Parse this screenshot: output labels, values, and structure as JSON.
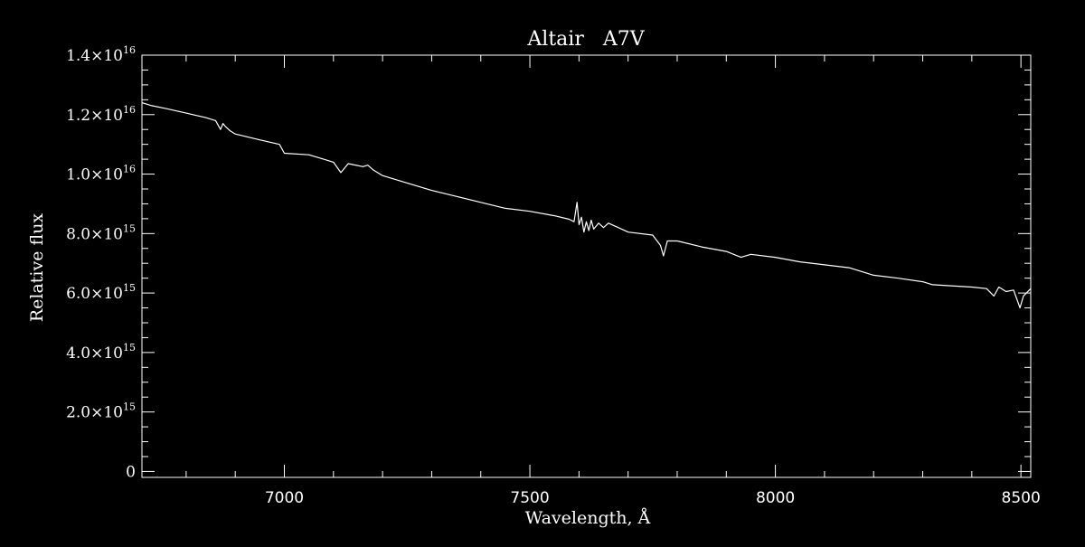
{
  "chart_data": {
    "type": "line",
    "title": "Altair   A7V",
    "xlabel": "Wavelength, Å",
    "ylabel": "Relative flux",
    "xlim": [
      6710,
      8520
    ],
    "ylim": [
      -200000000000000.0,
      1.4e+16
    ],
    "x_ticks": [
      7000,
      7500,
      8000,
      8500
    ],
    "x_tick_labels": [
      "7000",
      "7500",
      "8000",
      "8500"
    ],
    "y_ticks": [
      {
        "value": 1.4e+16,
        "mantissa": "1.4",
        "times": "×",
        "base": "10",
        "exp": "16"
      },
      {
        "value": 1.2e+16,
        "mantissa": "1.2",
        "times": "×",
        "base": "10",
        "exp": "16"
      },
      {
        "value": 1e+16,
        "mantissa": "1.0",
        "times": "×",
        "base": "10",
        "exp": "16"
      },
      {
        "value": 8000000000000000.0,
        "mantissa": "8.0",
        "times": "×",
        "base": "10",
        "exp": "15"
      },
      {
        "value": 6000000000000000.0,
        "mantissa": "6.0",
        "times": "×",
        "base": "10",
        "exp": "15"
      },
      {
        "value": 4000000000000000.0,
        "mantissa": "4.0",
        "times": "×",
        "base": "10",
        "exp": "15"
      },
      {
        "value": 2000000000000000.0,
        "mantissa": "2.0",
        "times": "×",
        "base": "10",
        "exp": "15"
      },
      {
        "value": 0,
        "mantissa": "0",
        "times": "",
        "base": "",
        "exp": ""
      }
    ],
    "x_minor_step": 100,
    "y_minor_step": 500000000000000.0,
    "grid": false,
    "colors": {
      "background": "#000000",
      "foreground": "#ffffff"
    },
    "series": [
      {
        "points": [
          [
            6710,
            1.24e+16
          ],
          [
            6730,
            1.23e+16
          ],
          [
            6760,
            1.22e+16
          ],
          [
            6800,
            1.205e+16
          ],
          [
            6840,
            1.19e+16
          ],
          [
            6860,
            1.18e+16
          ],
          [
            6870,
            1.15e+16
          ],
          [
            6875,
            1.17e+16
          ],
          [
            6880,
            1.16e+16
          ],
          [
            6890,
            1.145e+16
          ],
          [
            6900,
            1.135e+16
          ],
          [
            6950,
            1.115e+16
          ],
          [
            6990,
            1.1e+16
          ],
          [
            7000,
            1.07e+16
          ],
          [
            7050,
            1.065e+16
          ],
          [
            7080,
            1.05e+16
          ],
          [
            7100,
            1.04e+16
          ],
          [
            7115,
            1.005e+16
          ],
          [
            7130,
            1.035e+16
          ],
          [
            7160,
            1.025e+16
          ],
          [
            7170,
            1.03e+16
          ],
          [
            7180,
            1.015e+16
          ],
          [
            7200,
            9950000000000000.0
          ],
          [
            7250,
            9700000000000000.0
          ],
          [
            7300,
            9450000000000000.0
          ],
          [
            7350,
            9250000000000000.0
          ],
          [
            7400,
            9050000000000000.0
          ],
          [
            7450,
            8850000000000000.0
          ],
          [
            7500,
            8750000000000000.0
          ],
          [
            7550,
            8600000000000000.0
          ],
          [
            7580,
            8480000000000000.0
          ],
          [
            7590,
            8400000000000000.0
          ],
          [
            7596,
            9050000000000000.0
          ],
          [
            7600,
            8300000000000000.0
          ],
          [
            7605,
            8550000000000000.0
          ],
          [
            7610,
            8050000000000000.0
          ],
          [
            7615,
            8400000000000000.0
          ],
          [
            7620,
            8100000000000000.0
          ],
          [
            7625,
            8450000000000000.0
          ],
          [
            7630,
            8150000000000000.0
          ],
          [
            7640,
            8350000000000000.0
          ],
          [
            7650,
            8200000000000000.0
          ],
          [
            7660,
            8350000000000000.0
          ],
          [
            7680,
            8200000000000000.0
          ],
          [
            7700,
            8050000000000000.0
          ],
          [
            7750,
            7950000000000000.0
          ],
          [
            7766,
            7600000000000000.0
          ],
          [
            7772,
            7250000000000000.0
          ],
          [
            7780,
            7750000000000000.0
          ],
          [
            7800,
            7750000000000000.0
          ],
          [
            7850,
            7550000000000000.0
          ],
          [
            7900,
            7400000000000000.0
          ],
          [
            7930,
            7200000000000000.0
          ],
          [
            7950,
            7300000000000000.0
          ],
          [
            8000,
            7200000000000000.0
          ],
          [
            8050,
            7050000000000000.0
          ],
          [
            8100,
            6950000000000000.0
          ],
          [
            8150,
            6850000000000000.0
          ],
          [
            8200,
            6600000000000000.0
          ],
          [
            8250,
            6500000000000000.0
          ],
          [
            8300,
            6380000000000000.0
          ],
          [
            8320,
            6280000000000000.0
          ],
          [
            8350,
            6250000000000000.0
          ],
          [
            8400,
            6200000000000000.0
          ],
          [
            8430,
            6150000000000000.0
          ],
          [
            8445,
            5900000000000000.0
          ],
          [
            8455,
            6200000000000000.0
          ],
          [
            8470,
            6050000000000000.0
          ],
          [
            8485,
            6100000000000000.0
          ],
          [
            8498,
            5500000000000000.0
          ],
          [
            8505,
            5900000000000000.0
          ],
          [
            8520,
            6150000000000000.0
          ]
        ]
      }
    ]
  }
}
